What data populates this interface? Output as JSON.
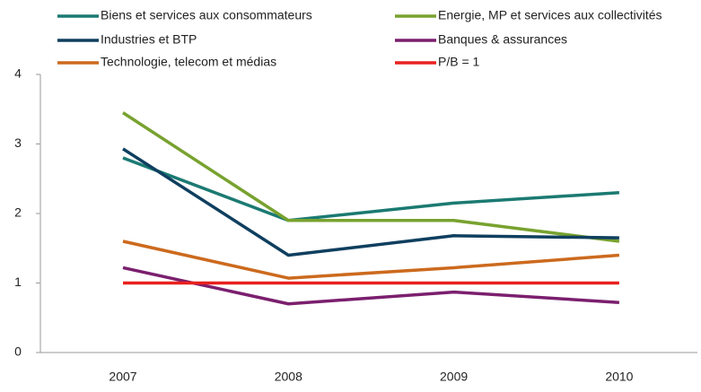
{
  "chart_data": {
    "type": "line",
    "categories": [
      "2007",
      "2008",
      "2009",
      "2010"
    ],
    "series": [
      {
        "name": "Biens et services aux consommateurs",
        "color": "#1b7a72",
        "values": [
          2.8,
          1.9,
          2.15,
          2.3
        ]
      },
      {
        "name": "Energie, MP et services aux collectivités",
        "color": "#78a22f",
        "values": [
          3.45,
          1.9,
          1.9,
          1.6
        ]
      },
      {
        "name": "Industries et BTP",
        "color": "#0f3f5f",
        "values": [
          2.93,
          1.4,
          1.68,
          1.65
        ]
      },
      {
        "name": "Banques & assurances",
        "color": "#7b1f6e",
        "values": [
          1.22,
          0.7,
          0.87,
          0.72
        ]
      },
      {
        "name": "Technologie, telecom et médias",
        "color": "#cc6a1e",
        "values": [
          1.6,
          1.07,
          1.22,
          1.4
        ]
      },
      {
        "name": "P/B = 1",
        "color": "#e8211e",
        "values": [
          1,
          1,
          1,
          1
        ]
      }
    ],
    "ylim": [
      0,
      4
    ],
    "yticks": [
      0,
      1,
      2,
      3,
      4
    ],
    "grid": false
  }
}
